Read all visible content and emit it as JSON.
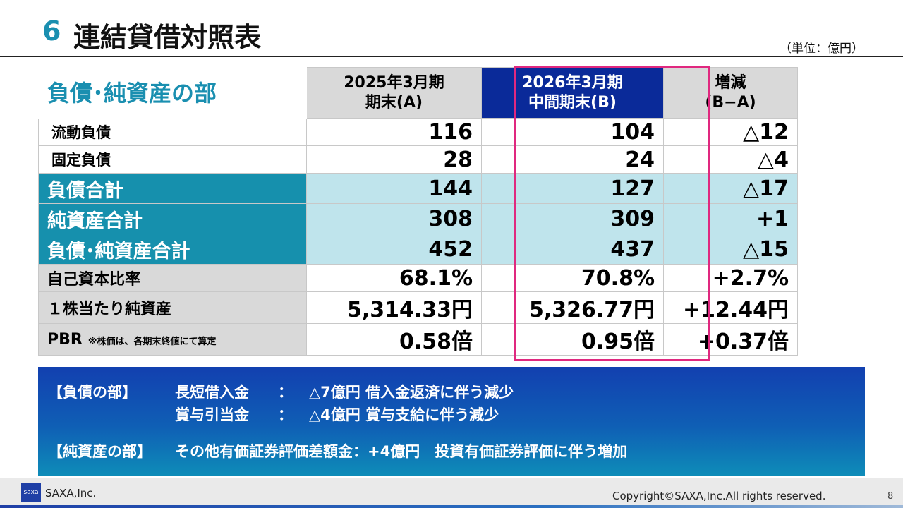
{
  "header": {
    "section_number": "6",
    "title": "連結貸借対照表",
    "unit": "（単位：億円）"
  },
  "table": {
    "section_title": "負債･純資産の部",
    "columns": [
      {
        "line1": "2025年3月期",
        "line2": "期末(A)"
      },
      {
        "line1": "2026年3月期",
        "line2": "中間期末(B)"
      },
      {
        "line1": "増減",
        "line2": "(B−A)"
      }
    ],
    "rows": [
      {
        "label": "流動負債",
        "a": "116",
        "b": "104",
        "diff": "△12",
        "style": "plain"
      },
      {
        "label": "固定負債",
        "a": "28",
        "b": "24",
        "diff": "△4",
        "style": "plain"
      },
      {
        "label": "負債合計",
        "a": "144",
        "b": "127",
        "diff": "△17",
        "style": "total"
      },
      {
        "label": "純資産合計",
        "a": "308",
        "b": "309",
        "diff": "+1",
        "style": "total"
      },
      {
        "label": "負債･純資産合計",
        "a": "452",
        "b": "437",
        "diff": "△15",
        "style": "total"
      },
      {
        "label": "自己資本比率",
        "a": "68.1%",
        "b": "70.8%",
        "diff": "+2.7%",
        "style": "grey"
      },
      {
        "label": "１株当たり純資産",
        "a": "5,314.33円",
        "b": "5,326.77円",
        "diff": "+12.44円",
        "style": "grey"
      },
      {
        "label": "PBR",
        "note": "※株価は、各期末終値にて算定",
        "a": "0.58倍",
        "b": "0.95倍",
        "diff": "+0.37倍",
        "style": "grey"
      }
    ]
  },
  "notes": {
    "liabilities_heading": "【負債の部】",
    "item1_name": "長短借入金",
    "item1_sep": "：",
    "item1_detail": "△7億円 借入金返済に伴う減少",
    "item2_name": "賞与引当金",
    "item2_sep": "：",
    "item2_detail": "△4億円 賞与支給に伴う減少",
    "equity_heading": "【純資産の部】",
    "item3": "その他有価証券評価差額金：+4億円　投資有価証券評価に伴う増加"
  },
  "footer": {
    "logo_text": "saxa",
    "company": "SAXA,Inc.",
    "copyright": "Copyright©SAXA,Inc.All rights reserved.",
    "page_number": "8"
  },
  "colors": {
    "accent": "#1a8fb0",
    "header_b": "#0a2a99",
    "highlight_border": "#e0287f",
    "total_label_bg": "#1690ad",
    "total_row_bg": "#bfe4ec"
  }
}
